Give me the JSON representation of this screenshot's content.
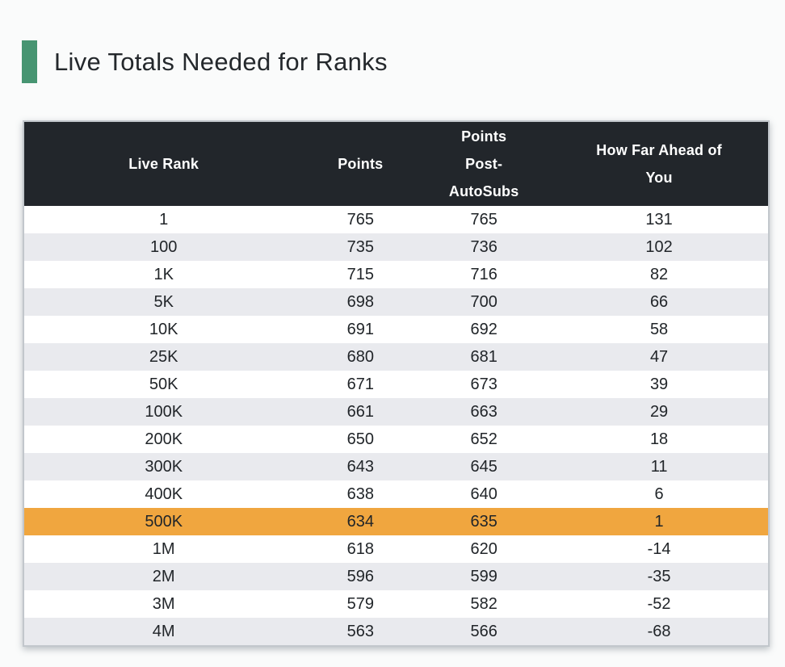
{
  "page": {
    "title": "Live Totals Needed for Ranks"
  },
  "colors": {
    "page_bg": "#fafbfb",
    "accent_green": "#479572",
    "title_text": "#24282c",
    "header_bg": "#22262b",
    "header_text": "#ffffff",
    "body_text": "#212529",
    "row_bg": "#ffffff",
    "row_alt_bg": "#e9eaee",
    "highlight_bg": "#f0a63f",
    "table_border": "#c2c7cc"
  },
  "table": {
    "columns": [
      {
        "id": "live-rank",
        "label": "Live Rank"
      },
      {
        "id": "points",
        "label": "Points"
      },
      {
        "id": "points-post-autosubs",
        "label": "Points\nPost-\nAutoSubs"
      },
      {
        "id": "how-far-ahead-of-you",
        "label": "How Far Ahead of\nYou"
      }
    ],
    "rows": [
      {
        "live_rank": "1",
        "points": "765",
        "points_post_autosubs": "765",
        "how_far_ahead_of_you": "131",
        "highlight": false
      },
      {
        "live_rank": "100",
        "points": "735",
        "points_post_autosubs": "736",
        "how_far_ahead_of_you": "102",
        "highlight": false
      },
      {
        "live_rank": "1K",
        "points": "715",
        "points_post_autosubs": "716",
        "how_far_ahead_of_you": "82",
        "highlight": false
      },
      {
        "live_rank": "5K",
        "points": "698",
        "points_post_autosubs": "700",
        "how_far_ahead_of_you": "66",
        "highlight": false
      },
      {
        "live_rank": "10K",
        "points": "691",
        "points_post_autosubs": "692",
        "how_far_ahead_of_you": "58",
        "highlight": false
      },
      {
        "live_rank": "25K",
        "points": "680",
        "points_post_autosubs": "681",
        "how_far_ahead_of_you": "47",
        "highlight": false
      },
      {
        "live_rank": "50K",
        "points": "671",
        "points_post_autosubs": "673",
        "how_far_ahead_of_you": "39",
        "highlight": false
      },
      {
        "live_rank": "100K",
        "points": "661",
        "points_post_autosubs": "663",
        "how_far_ahead_of_you": "29",
        "highlight": false
      },
      {
        "live_rank": "200K",
        "points": "650",
        "points_post_autosubs": "652",
        "how_far_ahead_of_you": "18",
        "highlight": false
      },
      {
        "live_rank": "300K",
        "points": "643",
        "points_post_autosubs": "645",
        "how_far_ahead_of_you": "11",
        "highlight": false
      },
      {
        "live_rank": "400K",
        "points": "638",
        "points_post_autosubs": "640",
        "how_far_ahead_of_you": "6",
        "highlight": false
      },
      {
        "live_rank": "500K",
        "points": "634",
        "points_post_autosubs": "635",
        "how_far_ahead_of_you": "1",
        "highlight": true
      },
      {
        "live_rank": "1M",
        "points": "618",
        "points_post_autosubs": "620",
        "how_far_ahead_of_you": "-14",
        "highlight": false
      },
      {
        "live_rank": "2M",
        "points": "596",
        "points_post_autosubs": "599",
        "how_far_ahead_of_you": "-35",
        "highlight": false
      },
      {
        "live_rank": "3M",
        "points": "579",
        "points_post_autosubs": "582",
        "how_far_ahead_of_you": "-52",
        "highlight": false
      },
      {
        "live_rank": "4M",
        "points": "563",
        "points_post_autosubs": "566",
        "how_far_ahead_of_you": "-68",
        "highlight": false
      }
    ]
  }
}
